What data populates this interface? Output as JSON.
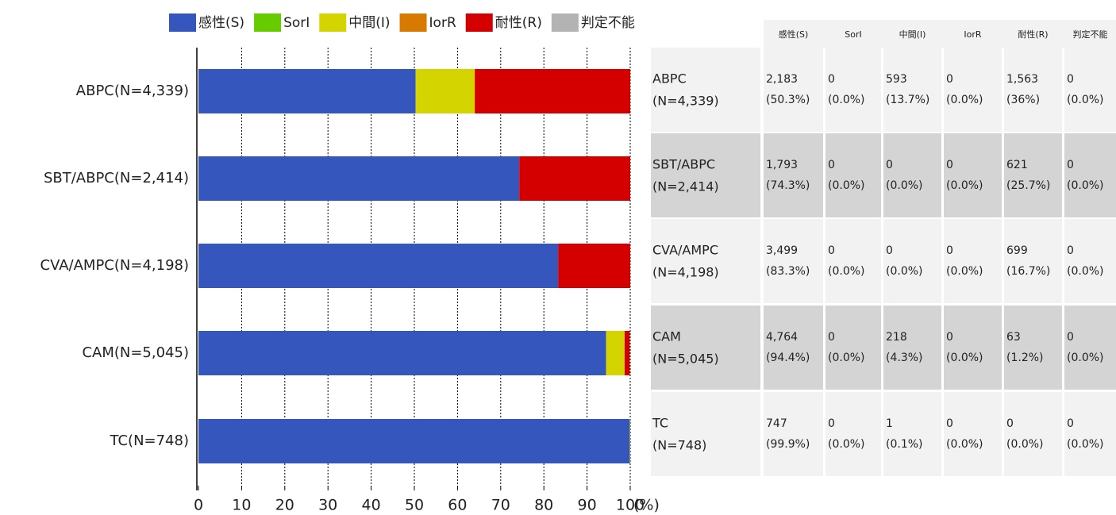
{
  "chart_data": {
    "type": "stacked-barh",
    "categories": [
      "ABPC(N=4,339)",
      "SBT/ABPC(N=2,414)",
      "CVA/AMPC(N=4,198)",
      "CAM(N=5,045)",
      "TC(N=748)"
    ],
    "series": [
      {
        "name": "感性(S)",
        "color": "#3557bd",
        "values": [
          50.3,
          74.3,
          83.3,
          94.4,
          99.9
        ]
      },
      {
        "name": "SorI",
        "color": "#66cc00",
        "values": [
          0,
          0,
          0,
          0,
          0
        ]
      },
      {
        "name": "中間(I)",
        "color": "#d4d400",
        "values": [
          13.7,
          0,
          0,
          4.3,
          0.1
        ]
      },
      {
        "name": "IorR",
        "color": "#d97a00",
        "values": [
          0,
          0,
          0,
          0,
          0
        ]
      },
      {
        "name": "耐性(R)",
        "color": "#d40000",
        "values": [
          36,
          25.7,
          16.7,
          1.2,
          0
        ]
      },
      {
        "name": "判定不能",
        "color": "#b3b3b3",
        "values": [
          0,
          0,
          0,
          0,
          0
        ]
      }
    ],
    "xlim": [
      0,
      100
    ],
    "xticks": [
      0,
      10,
      20,
      30,
      40,
      50,
      60,
      70,
      80,
      90,
      100
    ],
    "xlabel": "(%)",
    "grid": true,
    "legend": "top"
  },
  "table": {
    "rows": [
      {
        "name": "ABPC",
        "n": "(N=4,339)",
        "cells": [
          [
            "2,183",
            "(50.3%)"
          ],
          [
            "0",
            "(0.0%)"
          ],
          [
            "593",
            "(13.7%)"
          ],
          [
            "0",
            "(0.0%)"
          ],
          [
            "1,563",
            "(36%)"
          ],
          [
            "0",
            "(0.0%)"
          ]
        ]
      },
      {
        "name": "SBT/ABPC",
        "n": "(N=2,414)",
        "cells": [
          [
            "1,793",
            "(74.3%)"
          ],
          [
            "0",
            "(0.0%)"
          ],
          [
            "0",
            "(0.0%)"
          ],
          [
            "0",
            "(0.0%)"
          ],
          [
            "621",
            "(25.7%)"
          ],
          [
            "0",
            "(0.0%)"
          ]
        ]
      },
      {
        "name": "CVA/AMPC",
        "n": "(N=4,198)",
        "cells": [
          [
            "3,499",
            "(83.3%)"
          ],
          [
            "0",
            "(0.0%)"
          ],
          [
            "0",
            "(0.0%)"
          ],
          [
            "0",
            "(0.0%)"
          ],
          [
            "699",
            "(16.7%)"
          ],
          [
            "0",
            "(0.0%)"
          ]
        ]
      },
      {
        "name": "CAM",
        "n": "(N=5,045)",
        "cells": [
          [
            "4,764",
            "(94.4%)"
          ],
          [
            "0",
            "(0.0%)"
          ],
          [
            "218",
            "(4.3%)"
          ],
          [
            "0",
            "(0.0%)"
          ],
          [
            "63",
            "(1.2%)"
          ],
          [
            "0",
            "(0.0%)"
          ]
        ]
      },
      {
        "name": "TC",
        "n": "(N=748)",
        "cells": [
          [
            "747",
            "(99.9%)"
          ],
          [
            "0",
            "(0.0%)"
          ],
          [
            "1",
            "(0.1%)"
          ],
          [
            "0",
            "(0.0%)"
          ],
          [
            "0",
            "(0.0%)"
          ],
          [
            "0",
            "(0.0%)"
          ]
        ]
      }
    ]
  }
}
